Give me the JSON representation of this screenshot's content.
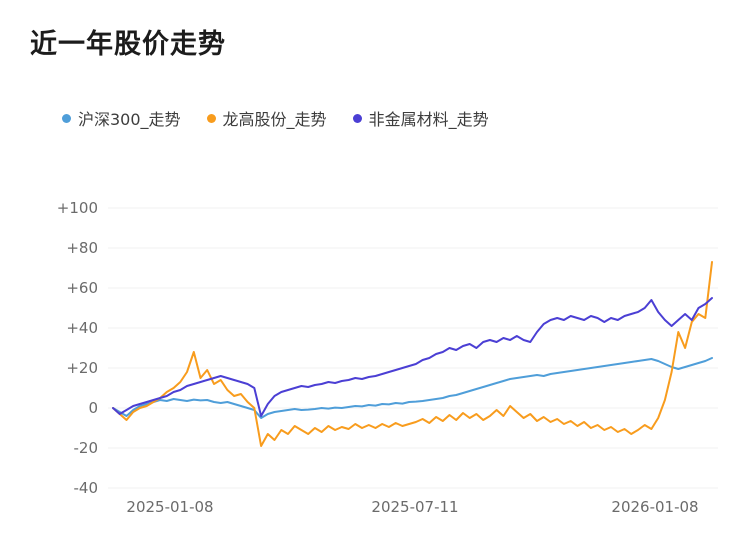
{
  "page": {
    "title": "近一年股价走势"
  },
  "chart_data": {
    "type": "line",
    "title": "近一年股价走势",
    "x_axis": {
      "tick_labels": [
        "2025-01-08",
        "2025-07-11",
        "2026-01-08"
      ]
    },
    "y_axis": {
      "tick_values": [
        100,
        80,
        60,
        40,
        20,
        0,
        -20,
        -40
      ],
      "tick_labels": [
        "+100",
        "+80",
        "+60",
        "+40",
        "+20",
        "0",
        "-20",
        "-40"
      ],
      "range": [
        -40,
        100
      ],
      "unit": "percent_change"
    },
    "grid": true,
    "legend_position": "top-left",
    "series": [
      {
        "key": "csi300",
        "name": "沪深300_走势",
        "color": "#4f9ed9",
        "values": [
          0,
          -2,
          -4,
          -1,
          1,
          2,
          3,
          4,
          3.5,
          4.5,
          4,
          3.5,
          4.2,
          3.8,
          4,
          3,
          2.5,
          3,
          2,
          1,
          0,
          -1,
          -5,
          -3,
          -2,
          -1.5,
          -1,
          -0.5,
          -1,
          -0.8,
          -0.5,
          0,
          -0.3,
          0.2,
          0,
          0.5,
          1,
          0.8,
          1.5,
          1.2,
          2,
          1.8,
          2.5,
          2.2,
          3,
          3.2,
          3.5,
          4,
          4.5,
          5,
          6,
          6.5,
          7.5,
          8.5,
          9.5,
          10.5,
          11.5,
          12.5,
          13.5,
          14.5,
          15,
          15.5,
          16,
          16.5,
          16,
          17,
          17.5,
          18,
          18.5,
          19,
          19.5,
          20,
          20.5,
          21,
          21.5,
          22,
          22.5,
          23,
          23.5,
          24,
          24.5,
          23.5,
          22,
          20.5,
          19.5,
          20.5,
          21.5,
          22.5,
          23.5,
          25
        ]
      },
      {
        "key": "longgao",
        "name": "龙高股份_走势",
        "color": "#f89c1d",
        "values": [
          0,
          -3,
          -6,
          -2,
          0,
          1,
          3,
          5,
          8,
          10,
          13,
          18,
          28,
          15,
          19,
          12,
          14,
          9,
          6,
          7,
          3,
          0,
          -19,
          -13,
          -16,
          -11,
          -13,
          -9,
          -11,
          -13,
          -10,
          -12,
          -9,
          -11,
          -9.5,
          -10.5,
          -8,
          -10,
          -8.5,
          -10,
          -8,
          -9.5,
          -7.5,
          -9,
          -8,
          -7,
          -5.5,
          -7.5,
          -4.5,
          -6.5,
          -3.5,
          -6,
          -2.5,
          -5,
          -3,
          -6,
          -4,
          -1,
          -4,
          1,
          -2,
          -5,
          -3,
          -6.5,
          -4.5,
          -7,
          -5.5,
          -8,
          -6.5,
          -9,
          -7,
          -10,
          -8.5,
          -11,
          -9.5,
          -12,
          -10.5,
          -13,
          -11,
          -8.5,
          -10.5,
          -5,
          4,
          18,
          38,
          30,
          43,
          47,
          45,
          73
        ]
      },
      {
        "key": "nonmetal",
        "name": "非金属材料_走势",
        "color": "#4b3fd4",
        "values": [
          0,
          -3,
          -1,
          1,
          2,
          3,
          4,
          5,
          6,
          8,
          9,
          11,
          12,
          13,
          14,
          15,
          16,
          15,
          14,
          13,
          12,
          10,
          -4,
          2,
          6,
          8,
          9,
          10,
          11,
          10.5,
          11.5,
          12,
          13,
          12.5,
          13.5,
          14,
          15,
          14.5,
          15.5,
          16,
          17,
          18,
          19,
          20,
          21,
          22,
          24,
          25,
          27,
          28,
          30,
          29,
          31,
          32,
          30,
          33,
          34,
          33,
          35,
          34,
          36,
          34,
          33,
          38,
          42,
          44,
          45,
          44,
          46,
          45,
          44,
          46,
          45,
          43,
          45,
          44,
          46,
          47,
          48,
          50,
          54,
          48,
          44,
          41,
          44,
          47,
          44,
          50,
          52,
          55
        ]
      }
    ]
  }
}
